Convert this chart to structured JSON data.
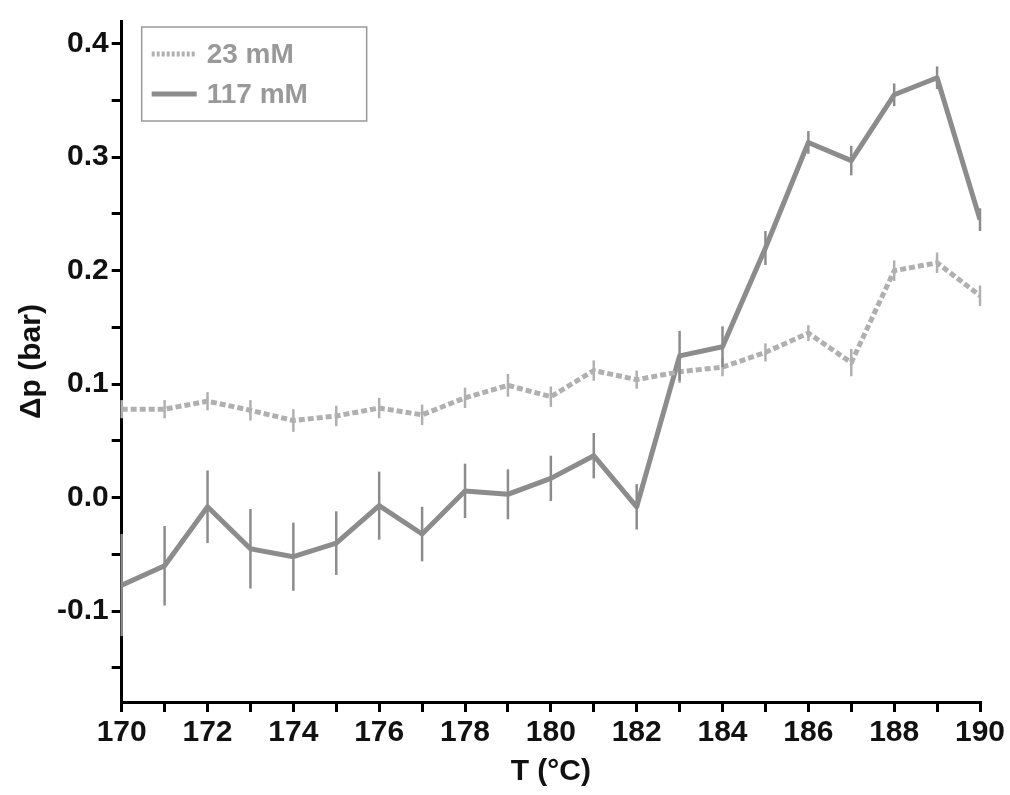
{
  "chart_data": {
    "type": "line",
    "xlabel": "T (°C)",
    "ylabel": "Δp (bar)",
    "x": [
      170,
      171,
      172,
      173,
      174,
      175,
      176,
      177,
      178,
      179,
      180,
      181,
      182,
      183,
      184,
      185,
      186,
      187,
      188,
      189,
      190
    ],
    "series": [
      {
        "name": "23 mM",
        "color": "#b0b0b0",
        "line_style": "dashed",
        "values": [
          0.078,
          0.078,
          0.085,
          0.077,
          0.068,
          0.072,
          0.079,
          0.073,
          0.088,
          0.099,
          0.089,
          0.112,
          0.104,
          0.111,
          0.115,
          0.128,
          0.145,
          0.119,
          0.2,
          0.207,
          0.178
        ],
        "errors": [
          0.008,
          0.008,
          0.008,
          0.009,
          0.01,
          0.009,
          0.009,
          0.009,
          0.009,
          0.01,
          0.009,
          0.009,
          0.008,
          0.01,
          0.008,
          0.008,
          0.007,
          0.012,
          0.009,
          0.009,
          0.009
        ]
      },
      {
        "name": "117 mM",
        "color": "#8c8c8c",
        "line_style": "solid",
        "values": [
          -0.077,
          -0.06,
          -0.008,
          -0.045,
          -0.052,
          -0.04,
          -0.007,
          -0.032,
          0.006,
          0.003,
          0.017,
          0.037,
          -0.008,
          0.125,
          0.133,
          0.22,
          0.313,
          0.297,
          0.355,
          0.37,
          0.245
        ],
        "errors": [
          0.045,
          0.035,
          0.032,
          0.035,
          0.03,
          0.028,
          0.03,
          0.024,
          0.024,
          0.022,
          0.02,
          0.02,
          0.02,
          0.022,
          0.018,
          0.015,
          0.01,
          0.013,
          0.01,
          0.01,
          0.01
        ]
      }
    ],
    "xlim": [
      170,
      190
    ],
    "xticks": [
      170,
      {
        "value": 171,
        "label": null
      },
      172,
      {
        "value": 173,
        "label": null
      },
      174,
      {
        "value": 175,
        "label": null
      },
      176,
      {
        "value": 177,
        "label": null
      },
      178,
      {
        "value": 179,
        "label": null
      },
      180,
      {
        "value": 181,
        "label": null
      },
      182,
      {
        "value": 183,
        "label": null
      },
      184,
      {
        "value": 185,
        "label": null
      },
      186,
      {
        "value": 187,
        "label": null
      },
      188,
      {
        "value": 189,
        "label": null
      },
      190
    ],
    "ylim": [
      -0.18,
      0.42
    ],
    "yticks": [
      {
        "value": -0.15,
        "label": null
      },
      {
        "value": -0.1,
        "label": "-0.1"
      },
      {
        "value": -0.05,
        "label": null
      },
      {
        "value": 0,
        "label": "0.0"
      },
      {
        "value": 0.05,
        "label": null
      },
      {
        "value": 0.1,
        "label": "0.1"
      },
      {
        "value": 0.15,
        "label": null
      },
      {
        "value": 0.2,
        "label": "0.2"
      },
      {
        "value": 0.25,
        "label": null
      },
      {
        "value": 0.3,
        "label": "0.3"
      },
      {
        "value": 0.35,
        "label": null
      },
      {
        "value": 0.4,
        "label": "0.4"
      }
    ],
    "grid": false,
    "legend": "top left",
    "marker": "none"
  }
}
